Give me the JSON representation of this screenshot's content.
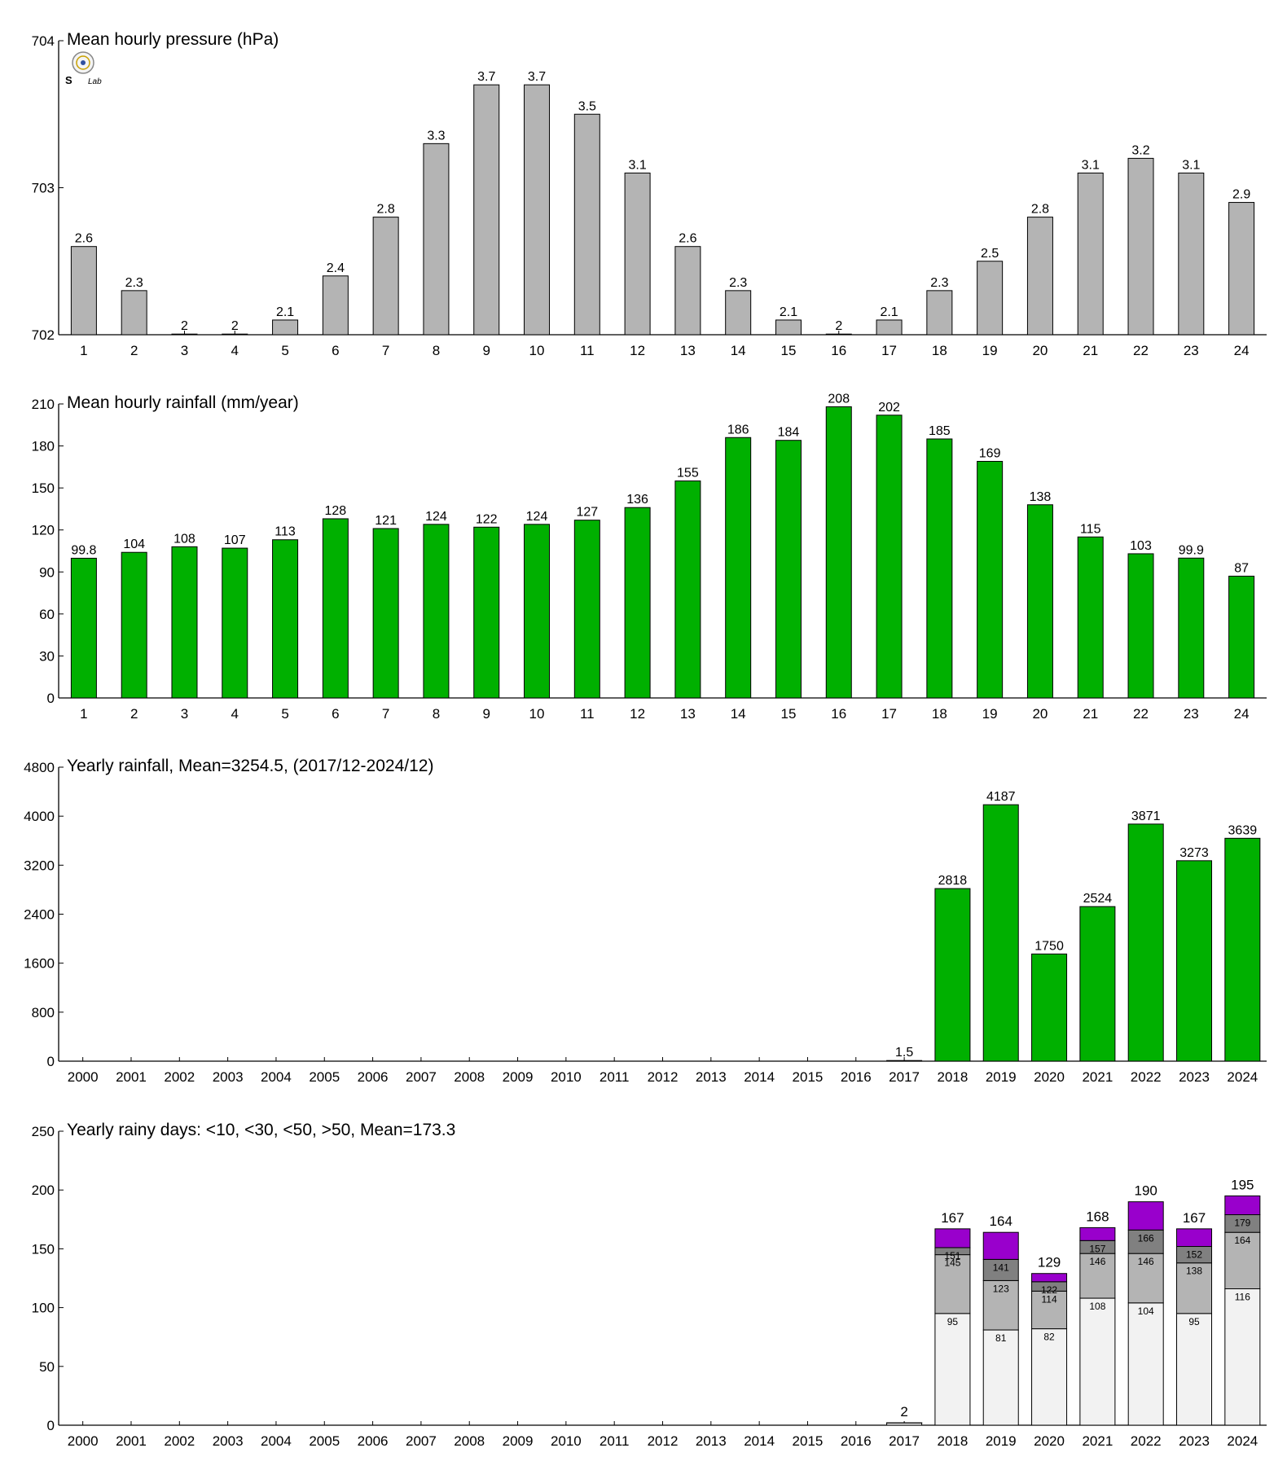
{
  "logo": {
    "text1": "S",
    "text2": "Lab"
  },
  "colors": {
    "pressure": "#b4b4b4",
    "rain": "#00b000",
    "d10": "#f2f2f2",
    "d30": "#b4b4b4",
    "d50": "#808080",
    "d50plus": "#9900cc"
  },
  "chart_data": [
    {
      "type": "bar",
      "title": "Mean hourly pressure (hPa)",
      "categories": [
        "1",
        "2",
        "3",
        "4",
        "5",
        "6",
        "7",
        "8",
        "9",
        "10",
        "11",
        "12",
        "13",
        "14",
        "15",
        "16",
        "17",
        "18",
        "19",
        "20",
        "21",
        "22",
        "23",
        "24"
      ],
      "values": [
        702.6,
        702.3,
        702.0,
        702.0,
        702.1,
        702.4,
        702.8,
        703.3,
        703.7,
        703.7,
        703.5,
        703.1,
        702.6,
        702.3,
        702.1,
        702.0,
        702.1,
        702.3,
        702.5,
        702.8,
        703.1,
        703.2,
        703.1,
        702.9
      ],
      "labels": [
        "2.6",
        "2.3",
        "2",
        "2",
        "2.1",
        "2.4",
        "2.8",
        "3.3",
        "3.7",
        "3.7",
        "3.5",
        "3.1",
        "2.6",
        "2.3",
        "2.1",
        "2",
        "2.1",
        "2.3",
        "2.5",
        "2.8",
        "3.1",
        "3.2",
        "3.1",
        "2.9"
      ],
      "ylim": [
        702,
        704
      ],
      "yticks": [
        "702",
        "703",
        "704"
      ],
      "color": "#b4b4b4"
    },
    {
      "type": "bar",
      "title": "Mean hourly rainfall (mm/year)",
      "categories": [
        "1",
        "2",
        "3",
        "4",
        "5",
        "6",
        "7",
        "8",
        "9",
        "10",
        "11",
        "12",
        "13",
        "14",
        "15",
        "16",
        "17",
        "18",
        "19",
        "20",
        "21",
        "22",
        "23",
        "24"
      ],
      "values": [
        99.8,
        104,
        108,
        107,
        113,
        128,
        121,
        124,
        122,
        124,
        127,
        136,
        155,
        186,
        184,
        208,
        202,
        185,
        169,
        138,
        115,
        103,
        99.9,
        87
      ],
      "labels": [
        "99.8",
        "104",
        "108",
        "107",
        "113",
        "128",
        "121",
        "124",
        "122",
        "124",
        "127",
        "136",
        "155",
        "186",
        "184",
        "208",
        "202",
        "185",
        "169",
        "138",
        "115",
        "103",
        "99.9",
        "87"
      ],
      "ylim": [
        0,
        210
      ],
      "yticks": [
        "0",
        "30",
        "60",
        "90",
        "120",
        "150",
        "180",
        "210"
      ],
      "color": "#00b000"
    },
    {
      "type": "bar",
      "title": "Yearly rainfall, Mean=3254.5, (2017/12-2024/12)",
      "categories": [
        "2000",
        "2001",
        "2002",
        "2003",
        "2004",
        "2005",
        "2006",
        "2007",
        "2008",
        "2009",
        "2010",
        "2011",
        "2012",
        "2013",
        "2014",
        "2015",
        "2016",
        "2017",
        "2018",
        "2019",
        "2020",
        "2021",
        "2022",
        "2023",
        "2024"
      ],
      "values": [
        null,
        null,
        null,
        null,
        null,
        null,
        null,
        null,
        null,
        null,
        null,
        null,
        null,
        null,
        null,
        null,
        null,
        1.5,
        2818,
        4187,
        1750,
        2524,
        3871,
        3273,
        3639
      ],
      "labels": [
        "",
        "",
        "",
        "",
        "",
        "",
        "",
        "",
        "",
        "",
        "",
        "",
        "",
        "",
        "",
        "",
        "",
        "1.5",
        "2818",
        "4187",
        "1750",
        "2524",
        "3871",
        "3273",
        "3639"
      ],
      "ylim": [
        0,
        4800
      ],
      "yticks": [
        "0",
        "800",
        "1600",
        "2400",
        "3200",
        "4000",
        "4800"
      ],
      "color": "#00b000"
    },
    {
      "type": "bar",
      "stacked": true,
      "title": "Yearly rainy days: <10, <30, <50, >50, Mean=173.3",
      "categories": [
        "2000",
        "2001",
        "2002",
        "2003",
        "2004",
        "2005",
        "2006",
        "2007",
        "2008",
        "2009",
        "2010",
        "2011",
        "2012",
        "2013",
        "2014",
        "2015",
        "2016",
        "2017",
        "2018",
        "2019",
        "2020",
        "2021",
        "2022",
        "2023",
        "2024"
      ],
      "cumulative": [
        null,
        null,
        null,
        null,
        null,
        null,
        null,
        null,
        null,
        null,
        null,
        null,
        null,
        null,
        null,
        null,
        null,
        [
          2,
          2,
          2,
          2
        ],
        [
          95,
          145,
          151,
          167
        ],
        [
          81,
          123,
          141,
          164
        ],
        [
          82,
          114,
          122,
          129
        ],
        [
          108,
          146,
          157,
          168
        ],
        [
          104,
          146,
          166,
          190
        ],
        [
          95,
          138,
          152,
          167
        ],
        [
          116,
          164,
          179,
          195
        ]
      ],
      "top_labels": [
        "",
        "",
        "",
        "",
        "",
        "",
        "",
        "",
        "",
        "",
        "",
        "",
        "",
        "",
        "",
        "",
        "",
        "2",
        "167",
        "164",
        "129",
        "168",
        "190",
        "167",
        "195"
      ],
      "ylim": [
        0,
        250
      ],
      "yticks": [
        "0",
        "50",
        "100",
        "150",
        "200",
        "250"
      ],
      "series_colors": [
        "#f2f2f2",
        "#b4b4b4",
        "#808080",
        "#9900cc"
      ]
    }
  ]
}
